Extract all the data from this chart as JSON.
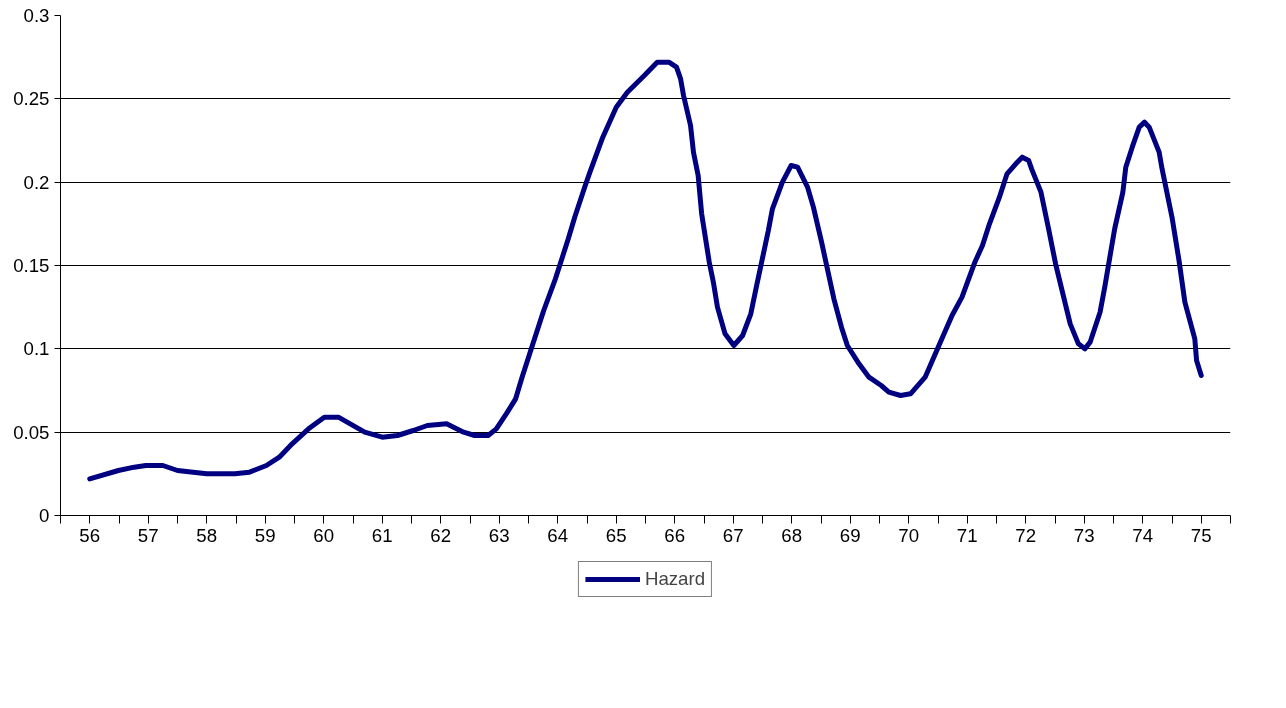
{
  "chart_data": {
    "type": "line",
    "x": [
      56.0,
      56.49,
      56.76,
      56.96,
      57.25,
      57.5,
      58.0,
      58.48,
      58.73,
      59.02,
      59.24,
      59.46,
      59.74,
      60.01,
      60.25,
      60.7,
      61.0,
      61.26,
      61.53,
      61.77,
      62.1,
      62.39,
      62.58,
      62.81,
      62.95,
      63.12,
      63.28,
      63.39,
      63.52,
      63.76,
      63.96,
      64.18,
      64.29,
      64.46,
      64.55,
      64.77,
      65.0,
      65.19,
      65.48,
      65.7,
      65.9,
      66.03,
      66.1,
      66.15,
      66.27,
      66.32,
      66.4,
      66.46,
      66.59,
      66.66,
      66.73,
      66.86,
      67.01,
      67.16,
      67.3,
      67.4,
      67.6,
      67.67,
      67.84,
      67.99,
      68.1,
      68.27,
      68.37,
      68.51,
      68.72,
      68.85,
      68.95,
      69.15,
      69.32,
      69.53,
      69.66,
      69.86,
      70.03,
      70.28,
      70.54,
      70.74,
      70.91,
      71.13,
      71.26,
      71.38,
      71.55,
      71.68,
      71.83,
      71.94,
      72.05,
      72.1,
      72.26,
      72.39,
      72.51,
      72.69,
      72.76,
      72.9,
      73.01,
      73.1,
      73.27,
      73.35,
      73.52,
      73.66,
      73.71,
      73.82,
      73.94,
      74.03,
      74.11,
      74.28,
      74.33,
      74.5,
      74.62,
      74.72,
      74.89,
      74.92,
      75.0
    ],
    "series": [
      {
        "name": "Hazard",
        "color": "#000080",
        "values": [
          0.022,
          0.027,
          0.029,
          0.03,
          0.03,
          0.027,
          0.025,
          0.025,
          0.026,
          0.03,
          0.035,
          0.043,
          0.052,
          0.059,
          0.059,
          0.05,
          0.047,
          0.048,
          0.051,
          0.054,
          0.055,
          0.05,
          0.048,
          0.048,
          0.052,
          0.061,
          0.07,
          0.083,
          0.097,
          0.123,
          0.142,
          0.166,
          0.179,
          0.197,
          0.206,
          0.227,
          0.245,
          0.254,
          0.264,
          0.272,
          0.272,
          0.269,
          0.262,
          0.252,
          0.234,
          0.218,
          0.204,
          0.181,
          0.152,
          0.14,
          0.125,
          0.109,
          0.102,
          0.108,
          0.121,
          0.138,
          0.171,
          0.184,
          0.2,
          0.21,
          0.209,
          0.197,
          0.185,
          0.164,
          0.13,
          0.113,
          0.102,
          0.091,
          0.083,
          0.078,
          0.074,
          0.072,
          0.073,
          0.083,
          0.104,
          0.12,
          0.131,
          0.152,
          0.162,
          0.175,
          0.191,
          0.205,
          0.211,
          0.215,
          0.213,
          0.208,
          0.194,
          0.172,
          0.151,
          0.125,
          0.115,
          0.103,
          0.1,
          0.104,
          0.122,
          0.137,
          0.172,
          0.194,
          0.209,
          0.221,
          0.233,
          0.236,
          0.233,
          0.218,
          0.208,
          0.179,
          0.153,
          0.128,
          0.106,
          0.093,
          0.084
        ]
      }
    ],
    "xlim": [
      55.5,
      75.5
    ],
    "xticks": [
      {
        "value": 55.5,
        "label": null
      },
      {
        "value": 56,
        "label": "56"
      },
      {
        "value": 56.5,
        "label": null
      },
      {
        "value": 57,
        "label": "57"
      },
      {
        "value": 57.5,
        "label": null
      },
      {
        "value": 58,
        "label": "58"
      },
      {
        "value": 58.5,
        "label": null
      },
      {
        "value": 59,
        "label": "59"
      },
      {
        "value": 59.5,
        "label": null
      },
      {
        "value": 60,
        "label": "60"
      },
      {
        "value": 60.5,
        "label": null
      },
      {
        "value": 61,
        "label": "61"
      },
      {
        "value": 61.5,
        "label": null
      },
      {
        "value": 62,
        "label": "62"
      },
      {
        "value": 62.5,
        "label": null
      },
      {
        "value": 63,
        "label": "63"
      },
      {
        "value": 63.5,
        "label": null
      },
      {
        "value": 64,
        "label": "64"
      },
      {
        "value": 64.5,
        "label": null
      },
      {
        "value": 65,
        "label": "65"
      },
      {
        "value": 65.5,
        "label": null
      },
      {
        "value": 66,
        "label": "66"
      },
      {
        "value": 66.5,
        "label": null
      },
      {
        "value": 67,
        "label": "67"
      },
      {
        "value": 67.5,
        "label": null
      },
      {
        "value": 68,
        "label": "68"
      },
      {
        "value": 68.5,
        "label": null
      },
      {
        "value": 69,
        "label": "69"
      },
      {
        "value": 69.5,
        "label": null
      },
      {
        "value": 70,
        "label": "70"
      },
      {
        "value": 70.5,
        "label": null
      },
      {
        "value": 71,
        "label": "71"
      },
      {
        "value": 71.5,
        "label": null
      },
      {
        "value": 72,
        "label": "72"
      },
      {
        "value": 72.5,
        "label": null
      },
      {
        "value": 73,
        "label": "73"
      },
      {
        "value": 73.5,
        "label": null
      },
      {
        "value": 74,
        "label": "74"
      },
      {
        "value": 74.5,
        "label": null
      },
      {
        "value": 75,
        "label": "75"
      },
      {
        "value": 75.5,
        "label": null
      }
    ],
    "ylim": [
      0,
      0.3
    ],
    "yticks": [
      0,
      0.05,
      0.1,
      0.15,
      0.2,
      0.25,
      0.3
    ],
    "grid": "y",
    "legend": "bottom",
    "marker": "none",
    "line_style": "solid"
  }
}
